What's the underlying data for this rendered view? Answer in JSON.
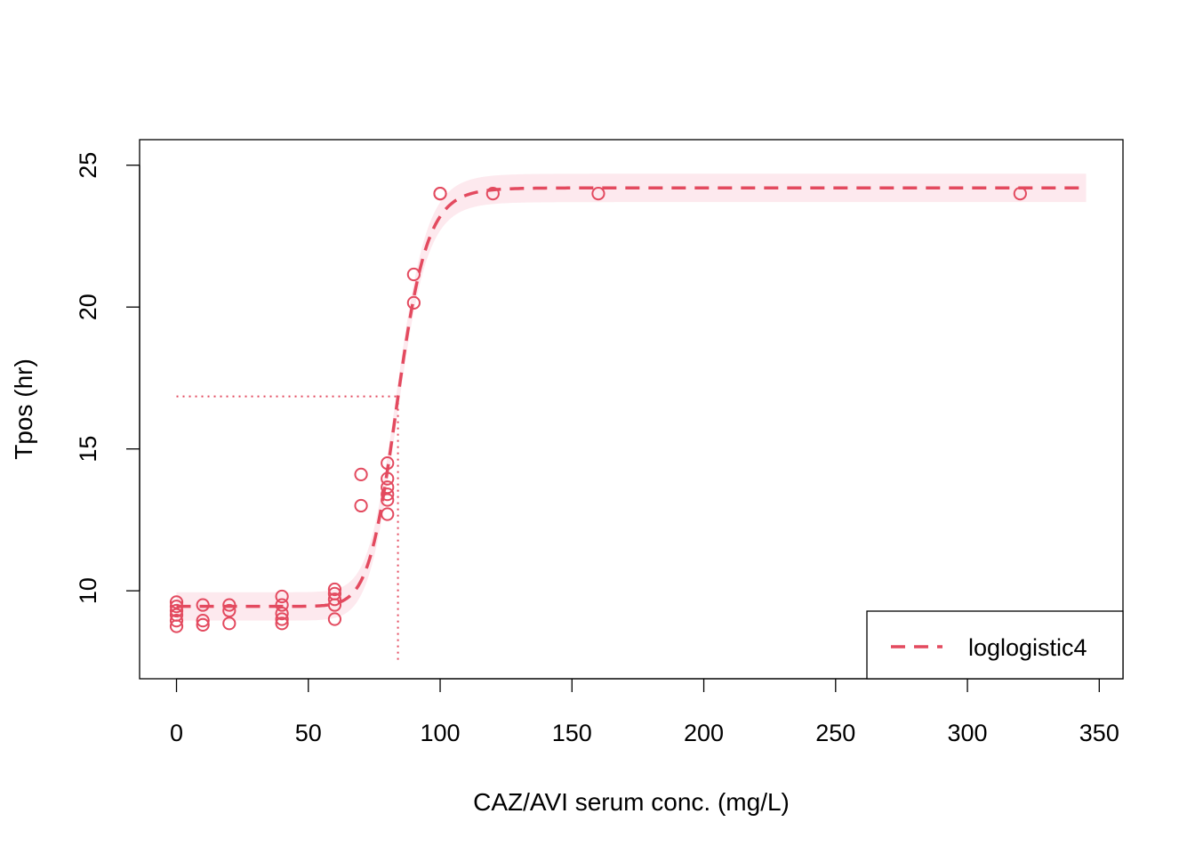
{
  "chart_data": {
    "type": "scatter",
    "title": "",
    "xlabel": "CAZ/AVI serum conc. (mg/L)",
    "ylabel": "Tpos (hr)",
    "xlim": [
      -14,
      359
    ],
    "ylim": [
      6.9,
      25.9
    ],
    "x_ticks": [
      0,
      50,
      100,
      150,
      200,
      250,
      300,
      350
    ],
    "y_ticks": [
      10,
      15,
      20,
      25
    ],
    "grid": false,
    "legend_position": "bottom-right",
    "colors": {
      "series": "#e34a5f",
      "band": "#fde9ee",
      "axis": "#000000"
    },
    "points": [
      {
        "x": 0,
        "y": 8.75
      },
      {
        "x": 0,
        "y": 8.95
      },
      {
        "x": 0,
        "y": 9.15
      },
      {
        "x": 0,
        "y": 9.3
      },
      {
        "x": 0,
        "y": 9.45
      },
      {
        "x": 0,
        "y": 9.6
      },
      {
        "x": 10,
        "y": 8.8
      },
      {
        "x": 10,
        "y": 8.95
      },
      {
        "x": 10,
        "y": 9.5
      },
      {
        "x": 20,
        "y": 8.85
      },
      {
        "x": 20,
        "y": 9.3
      },
      {
        "x": 20,
        "y": 9.5
      },
      {
        "x": 40,
        "y": 8.85
      },
      {
        "x": 40,
        "y": 9.0
      },
      {
        "x": 40,
        "y": 9.2
      },
      {
        "x": 40,
        "y": 9.5
      },
      {
        "x": 40,
        "y": 9.8
      },
      {
        "x": 60,
        "y": 9.0
      },
      {
        "x": 60,
        "y": 9.5
      },
      {
        "x": 60,
        "y": 9.7
      },
      {
        "x": 60,
        "y": 9.9
      },
      {
        "x": 60,
        "y": 10.05
      },
      {
        "x": 70,
        "y": 13.0
      },
      {
        "x": 70,
        "y": 14.1
      },
      {
        "x": 80,
        "y": 12.7
      },
      {
        "x": 80,
        "y": 13.2
      },
      {
        "x": 80,
        "y": 13.4
      },
      {
        "x": 80,
        "y": 13.65
      },
      {
        "x": 80,
        "y": 13.95
      },
      {
        "x": 80,
        "y": 14.5
      },
      {
        "x": 90,
        "y": 20.15
      },
      {
        "x": 90,
        "y": 21.15
      },
      {
        "x": 100,
        "y": 24.0
      },
      {
        "x": 100,
        "y": 24.0
      },
      {
        "x": 120,
        "y": 24.0
      },
      {
        "x": 160,
        "y": 24.0
      },
      {
        "x": 320,
        "y": 24.0
      }
    ],
    "fit": {
      "name": "loglogistic4",
      "model": "loglogistic4",
      "lower": 9.45,
      "upper": 24.2,
      "ec50": 84,
      "slope": 15,
      "x_range": [
        0,
        345
      ],
      "band_halfwidth": 0.5
    },
    "ec50_marker": {
      "x": 84,
      "y": 16.85
    }
  }
}
